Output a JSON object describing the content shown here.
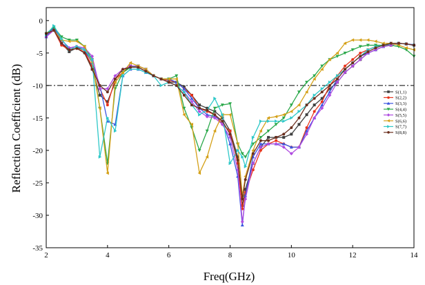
{
  "chart_data": {
    "type": "line",
    "title": "",
    "xlabel": "Freq(GHz)",
    "ylabel": "Reflection Coefficient (dB)",
    "xlim": [
      2,
      14
    ],
    "ylim": [
      -35,
      2
    ],
    "xticks": [
      2,
      4,
      6,
      8,
      10,
      12,
      14
    ],
    "yticks": [
      0,
      -5,
      -10,
      -15,
      -20,
      -25,
      -30,
      -35
    ],
    "grid": false,
    "legend_position": "right",
    "reference_line": {
      "y": -10,
      "style": "dash-dot",
      "color": "#000000"
    },
    "x": [
      2.0,
      2.25,
      2.5,
      2.75,
      3.0,
      3.25,
      3.5,
      3.75,
      4.0,
      4.25,
      4.5,
      4.75,
      5.0,
      5.25,
      5.5,
      5.75,
      6.0,
      6.25,
      6.5,
      6.75,
      7.0,
      7.25,
      7.5,
      7.75,
      8.0,
      8.25,
      8.4,
      8.5,
      8.75,
      9.0,
      9.25,
      9.5,
      9.75,
      10.0,
      10.25,
      10.5,
      10.75,
      11.0,
      11.25,
      11.5,
      11.75,
      12.0,
      12.25,
      12.5,
      12.75,
      13.0,
      13.25,
      13.5,
      13.75,
      14.0
    ],
    "series": [
      {
        "name": "S(1,1)",
        "color": "#404040",
        "marker": "square",
        "values": [
          -2.0,
          -1.2,
          -3.5,
          -4.8,
          -4.2,
          -4.5,
          -7.5,
          -11.5,
          -12.5,
          -9.5,
          -8.0,
          -7.0,
          -7.2,
          -7.8,
          -8.5,
          -9.0,
          -9.5,
          -9.5,
          -10.2,
          -11.5,
          -13.0,
          -13.5,
          -14.0,
          -15.0,
          -17.0,
          -21.0,
          -28.5,
          -26.0,
          -22.0,
          -19.5,
          -18.0,
          -18.0,
          -18.0,
          -17.5,
          -16.0,
          -14.5,
          -13.0,
          -12.0,
          -10.5,
          -9.5,
          -8.0,
          -7.0,
          -6.0,
          -5.0,
          -4.5,
          -4.0,
          -3.8,
          -3.5,
          -3.6,
          -3.8
        ]
      },
      {
        "name": "S(2,2)",
        "color": "#e8341c",
        "marker": "circle",
        "values": [
          -2.2,
          -1.5,
          -3.8,
          -4.5,
          -4.3,
          -4.8,
          -7.0,
          -10.5,
          -13.0,
          -9.0,
          -8.0,
          -7.2,
          -7.0,
          -7.5,
          -8.5,
          -9.0,
          -9.2,
          -9.5,
          -10.5,
          -11.5,
          -13.5,
          -14.0,
          -14.5,
          -16.0,
          -17.0,
          -22.0,
          -29.0,
          -26.5,
          -23.0,
          -20.0,
          -19.0,
          -18.5,
          -19.0,
          -19.5,
          -19.5,
          -16.5,
          -14.0,
          -12.5,
          -10.0,
          -8.5,
          -7.0,
          -6.0,
          -5.0,
          -4.5,
          -4.0,
          -3.8,
          -3.5,
          -3.5,
          -3.6,
          -3.8
        ]
      },
      {
        "name": "S(3,3)",
        "color": "#3a55e0",
        "marker": "triangle-up",
        "values": [
          -2.5,
          -1.0,
          -3.0,
          -4.2,
          -4.0,
          -4.5,
          -6.5,
          -10.0,
          -15.5,
          -16.0,
          -8.5,
          -7.5,
          -7.5,
          -8.0,
          -8.5,
          -9.0,
          -9.0,
          -9.5,
          -10.5,
          -12.0,
          -13.5,
          -14.5,
          -14.8,
          -15.5,
          -19.0,
          -24.0,
          -31.5,
          -27.0,
          -21.0,
          -19.0,
          -19.0,
          -19.0,
          -19.0,
          -19.5,
          -19.5,
          -17.0,
          -15.0,
          -13.0,
          -11.0,
          -9.0,
          -7.5,
          -6.5,
          -5.5,
          -5.0,
          -4.5,
          -4.0,
          -3.5,
          -3.5,
          -3.6,
          -3.7
        ]
      },
      {
        "name": "S(4,4)",
        "color": "#2aa84a",
        "marker": "triangle-down",
        "values": [
          -2.0,
          -1.0,
          -2.5,
          -3.0,
          -3.0,
          -4.0,
          -6.0,
          -13.5,
          -22.0,
          -10.5,
          -8.0,
          -7.2,
          -7.0,
          -7.5,
          -8.5,
          -9.0,
          -9.0,
          -8.5,
          -13.5,
          -16.5,
          -20.0,
          -17.0,
          -13.5,
          -13.0,
          -12.8,
          -19.0,
          -20.5,
          -21.0,
          -19.0,
          -18.0,
          -17.0,
          -16.0,
          -15.0,
          -13.0,
          -11.0,
          -9.5,
          -8.5,
          -7.0,
          -6.0,
          -5.5,
          -5.0,
          -4.5,
          -4.0,
          -3.8,
          -3.8,
          -3.8,
          -3.8,
          -4.0,
          -4.5,
          -5.5
        ]
      },
      {
        "name": "S(5,5)",
        "color": "#b04ce0",
        "marker": "diamond",
        "values": [
          -2.5,
          -1.5,
          -3.5,
          -4.2,
          -4.0,
          -4.2,
          -5.5,
          -10.5,
          -10.5,
          -8.5,
          -7.5,
          -7.0,
          -7.0,
          -7.5,
          -8.5,
          -9.0,
          -9.5,
          -10.0,
          -11.0,
          -12.5,
          -14.0,
          -14.8,
          -15.0,
          -16.0,
          -18.0,
          -23.0,
          -31.0,
          -27.5,
          -22.0,
          -19.5,
          -19.0,
          -19.0,
          -19.5,
          -20.5,
          -19.5,
          -17.5,
          -15.0,
          -13.5,
          -11.5,
          -9.5,
          -8.0,
          -7.0,
          -6.0,
          -5.0,
          -4.5,
          -4.0,
          -3.8,
          -3.5,
          -3.6,
          -3.8
        ]
      },
      {
        "name": "S(6,6)",
        "color": "#d4a017",
        "marker": "triangle-left",
        "values": [
          -2.0,
          -1.5,
          -3.0,
          -3.2,
          -3.2,
          -4.0,
          -6.5,
          -13.5,
          -23.5,
          -9.5,
          -8.0,
          -6.5,
          -7.0,
          -7.5,
          -8.5,
          -9.0,
          -9.0,
          -9.0,
          -14.5,
          -16.0,
          -23.5,
          -21.0,
          -17.0,
          -14.5,
          -14.5,
          -19.0,
          -27.0,
          -24.0,
          -20.0,
          -17.0,
          -15.0,
          -14.8,
          -14.5,
          -14.0,
          -13.0,
          -11.0,
          -9.0,
          -7.5,
          -6.0,
          -5.0,
          -3.5,
          -3.0,
          -3.0,
          -3.0,
          -3.2,
          -3.5,
          -3.5,
          -3.8,
          -4.2,
          -4.5
        ]
      },
      {
        "name": "S(7,7)",
        "color": "#2ec8c8",
        "marker": "triangle-right",
        "values": [
          -2.2,
          -0.8,
          -2.8,
          -4.5,
          -4.0,
          -4.5,
          -6.0,
          -21.0,
          -15.0,
          -17.0,
          -8.5,
          -7.5,
          -7.5,
          -8.0,
          -8.5,
          -10.0,
          -9.5,
          -10.0,
          -11.0,
          -13.0,
          -14.5,
          -13.8,
          -12.0,
          -14.5,
          -22.0,
          -20.0,
          -21.0,
          -22.5,
          -18.0,
          -15.5,
          -15.5,
          -15.5,
          -15.5,
          -15.0,
          -14.0,
          -13.0,
          -11.5,
          -10.5,
          -9.5,
          -8.5,
          -7.5,
          -6.5,
          -5.5,
          -4.5,
          -4.0,
          -3.8,
          -3.5,
          -3.5,
          -3.6,
          -3.8
        ]
      },
      {
        "name": "S(8,8)",
        "color": "#6b2f1e",
        "marker": "circle",
        "values": [
          -2.0,
          -1.5,
          -3.5,
          -4.5,
          -4.3,
          -5.0,
          -7.5,
          -10.0,
          -11.0,
          -9.0,
          -7.5,
          -7.2,
          -7.2,
          -7.8,
          -8.5,
          -9.0,
          -9.5,
          -10.0,
          -11.5,
          -13.0,
          -13.5,
          -13.8,
          -14.5,
          -15.5,
          -17.5,
          -21.5,
          -27.5,
          -24.5,
          -20.5,
          -18.5,
          -18.5,
          -18.0,
          -17.5,
          -16.5,
          -15.0,
          -13.0,
          -12.0,
          -11.0,
          -10.0,
          -9.0,
          -7.5,
          -6.5,
          -5.5,
          -4.8,
          -4.2,
          -3.8,
          -3.5,
          -3.5,
          -3.6,
          -3.8
        ]
      }
    ]
  }
}
